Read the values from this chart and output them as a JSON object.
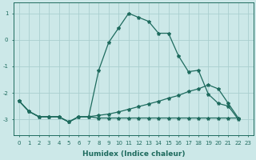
{
  "xlabel": "Humidex (Indice chaleur)",
  "background_color": "#cce8e8",
  "grid_color": "#aacfcf",
  "line_color": "#1e6b5e",
  "xlim": [
    -0.5,
    23.5
  ],
  "ylim": [
    -3.6,
    1.4
  ],
  "yticks": [
    -3,
    -2,
    -1,
    0,
    1
  ],
  "xticks": [
    0,
    1,
    2,
    3,
    4,
    5,
    6,
    7,
    8,
    9,
    10,
    11,
    12,
    13,
    14,
    15,
    16,
    17,
    18,
    19,
    20,
    21,
    22,
    23
  ],
  "series": [
    {
      "x": [
        0,
        1,
        2,
        3,
        4,
        5,
        6,
        7,
        8,
        9,
        10,
        11,
        12,
        13,
        14,
        15,
        16,
        17,
        18,
        19,
        20,
        21,
        22
      ],
      "y": [
        -2.3,
        -2.7,
        -2.9,
        -2.9,
        -2.9,
        -3.1,
        -2.9,
        -2.9,
        -1.15,
        -0.1,
        0.45,
        1.0,
        0.85,
        0.7,
        0.25,
        0.25,
        -0.6,
        -1.2,
        -1.15,
        -2.05,
        -2.4,
        -2.5,
        -3.0
      ]
    },
    {
      "x": [
        0,
        1,
        2,
        3,
        4,
        5,
        6,
        7,
        8,
        9,
        10,
        11,
        12,
        13,
        14,
        15,
        16,
        17,
        18,
        19,
        20,
        21,
        22
      ],
      "y": [
        -2.3,
        -2.7,
        -2.9,
        -2.9,
        -2.9,
        -3.1,
        -2.9,
        -2.9,
        -2.85,
        -2.8,
        -2.72,
        -2.62,
        -2.52,
        -2.42,
        -2.32,
        -2.2,
        -2.1,
        -1.95,
        -1.85,
        -1.7,
        -1.85,
        -2.4,
        -2.95
      ]
    },
    {
      "x": [
        0,
        1,
        2,
        3,
        4,
        5,
        6,
        7,
        8,
        9,
        10,
        11,
        12,
        13,
        14,
        15,
        16,
        17,
        18,
        19,
        20,
        21,
        22
      ],
      "y": [
        -2.3,
        -2.7,
        -2.9,
        -2.9,
        -2.9,
        -3.1,
        -2.9,
        -2.9,
        -2.95,
        -2.95,
        -2.95,
        -2.95,
        -2.95,
        -2.95,
        -2.95,
        -2.95,
        -2.95,
        -2.95,
        -2.95,
        -2.95,
        -2.95,
        -2.95,
        -2.95
      ]
    }
  ],
  "marker": "*",
  "markersize": 3,
  "linewidth": 0.9,
  "tick_fontsize": 5,
  "xlabel_fontsize": 6.5
}
